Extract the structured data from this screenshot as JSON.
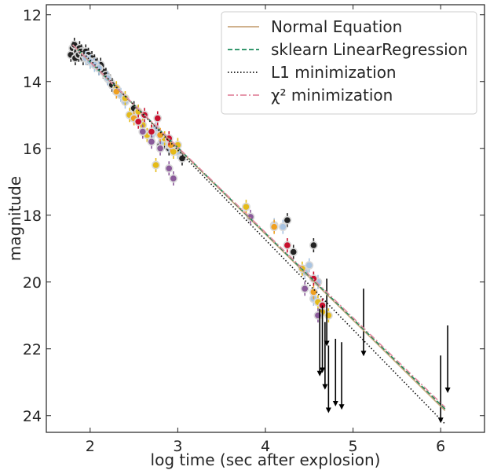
{
  "chart_data": {
    "type": "scatter",
    "xlabel": "log time (sec after explosion)",
    "ylabel": "magnitude",
    "xlim": [
      1.5,
      6.5
    ],
    "ylim": [
      24.5,
      11.7
    ],
    "y_inverted": true,
    "xticks": [
      2,
      3,
      4,
      5,
      6
    ],
    "yticks": [
      12,
      14,
      16,
      18,
      20,
      22,
      24
    ],
    "grid": false,
    "legend_position": "top-right",
    "fit_lines": [
      {
        "name": "Normal Equation",
        "style": "solid",
        "color": "#c9a77e",
        "x": [
          1.8,
          6.05
        ],
        "y": [
          12.9,
          23.85
        ]
      },
      {
        "name": "sklearn LinearRegression",
        "style": "dashed",
        "color": "#1a8a5a",
        "x": [
          1.8,
          6.05
        ],
        "y": [
          12.9,
          23.8
        ]
      },
      {
        "name": "L1 minimization",
        "style": "dotted",
        "color": "#111111",
        "x": [
          1.8,
          6.05
        ],
        "y": [
          12.82,
          24.25
        ]
      },
      {
        "name": "χ² minimization",
        "style": "dashdot",
        "color": "#e38aa0",
        "x": [
          1.8,
          6.05
        ],
        "y": [
          12.9,
          23.75
        ]
      }
    ],
    "series": [
      {
        "color": "#222222",
        "points": [
          [
            1.78,
            13.2
          ],
          [
            1.8,
            13.0
          ],
          [
            1.82,
            12.9
          ],
          [
            1.83,
            13.3
          ],
          [
            1.85,
            13.1
          ],
          [
            1.87,
            13.2
          ],
          [
            1.88,
            13.0
          ],
          [
            1.9,
            13.1
          ],
          [
            1.92,
            13.3
          ],
          [
            1.93,
            13.2
          ],
          [
            1.95,
            13.1
          ],
          [
            1.97,
            13.3
          ],
          [
            1.98,
            13.2
          ],
          [
            2.0,
            13.4
          ],
          [
            2.02,
            13.3
          ],
          [
            2.05,
            13.4
          ],
          [
            2.08,
            13.5
          ],
          [
            2.1,
            13.6
          ],
          [
            2.12,
            13.5
          ],
          [
            2.15,
            13.7
          ],
          [
            2.18,
            13.8
          ],
          [
            2.2,
            13.9
          ],
          [
            2.23,
            14.0
          ],
          [
            2.25,
            14.1
          ],
          [
            2.5,
            14.8
          ],
          [
            2.55,
            14.9
          ],
          [
            2.8,
            15.9
          ],
          [
            2.85,
            15.8
          ],
          [
            2.9,
            16.0
          ],
          [
            3.05,
            16.3
          ],
          [
            4.25,
            18.15
          ],
          [
            4.32,
            19.1
          ],
          [
            4.55,
            18.9
          ]
        ]
      },
      {
        "color": "#a9c4e2",
        "points": [
          [
            1.95,
            13.3
          ],
          [
            2.0,
            13.4
          ],
          [
            2.05,
            13.5
          ],
          [
            2.1,
            13.6
          ],
          [
            2.2,
            13.9
          ],
          [
            2.3,
            14.3
          ],
          [
            2.35,
            14.4
          ],
          [
            2.4,
            14.6
          ],
          [
            2.7,
            15.6
          ],
          [
            2.75,
            15.4
          ],
          [
            2.82,
            15.8
          ],
          [
            2.9,
            15.9
          ],
          [
            3.0,
            16.1
          ],
          [
            4.1,
            18.3
          ],
          [
            4.2,
            18.35
          ],
          [
            4.45,
            19.7
          ],
          [
            4.5,
            19.5
          ],
          [
            4.55,
            20.5
          ],
          [
            4.6,
            20.0
          ]
        ]
      },
      {
        "color": "#e5bb19",
        "points": [
          [
            2.3,
            14.2
          ],
          [
            2.4,
            14.5
          ],
          [
            2.45,
            15.0
          ],
          [
            2.55,
            14.9
          ],
          [
            2.6,
            15.3
          ],
          [
            2.65,
            15.6
          ],
          [
            2.75,
            16.5
          ],
          [
            2.85,
            15.7
          ],
          [
            2.95,
            16.1
          ],
          [
            3.0,
            15.9
          ],
          [
            3.78,
            17.75
          ],
          [
            4.42,
            19.6
          ],
          [
            4.6,
            20.6
          ],
          [
            4.65,
            20.9
          ],
          [
            4.72,
            21.0
          ]
        ]
      },
      {
        "color": "#f0a020",
        "points": [
          [
            2.3,
            14.3
          ],
          [
            2.5,
            15.1
          ],
          [
            2.7,
            15.5
          ],
          [
            2.8,
            15.6
          ],
          [
            2.92,
            15.9
          ],
          [
            4.1,
            18.35
          ],
          [
            4.55,
            20.3
          ]
        ]
      },
      {
        "color": "#c8102e",
        "points": [
          [
            2.55,
            15.2
          ],
          [
            2.62,
            15.0
          ],
          [
            2.7,
            15.5
          ],
          [
            2.77,
            15.1
          ],
          [
            2.9,
            15.7
          ],
          [
            4.25,
            18.9
          ],
          [
            4.55,
            19.9
          ],
          [
            4.65,
            20.7
          ]
        ]
      },
      {
        "color": "#8a5a9a",
        "points": [
          [
            2.6,
            15.5
          ],
          [
            2.7,
            15.8
          ],
          [
            2.8,
            16.0
          ],
          [
            2.9,
            16.6
          ],
          [
            2.95,
            16.9
          ],
          [
            3.83,
            18.05
          ],
          [
            4.45,
            20.2
          ],
          [
            4.6,
            21.0
          ]
        ]
      }
    ],
    "upper_limits": [
      [
        4.62,
        22.8
      ],
      [
        4.65,
        22.7
      ],
      [
        4.68,
        23.2
      ],
      [
        4.7,
        21.9
      ],
      [
        4.72,
        23.9
      ],
      [
        4.8,
        23.7
      ],
      [
        4.87,
        23.8
      ],
      [
        5.12,
        22.2
      ],
      [
        6.0,
        24.2
      ],
      [
        6.08,
        23.3
      ]
    ]
  }
}
